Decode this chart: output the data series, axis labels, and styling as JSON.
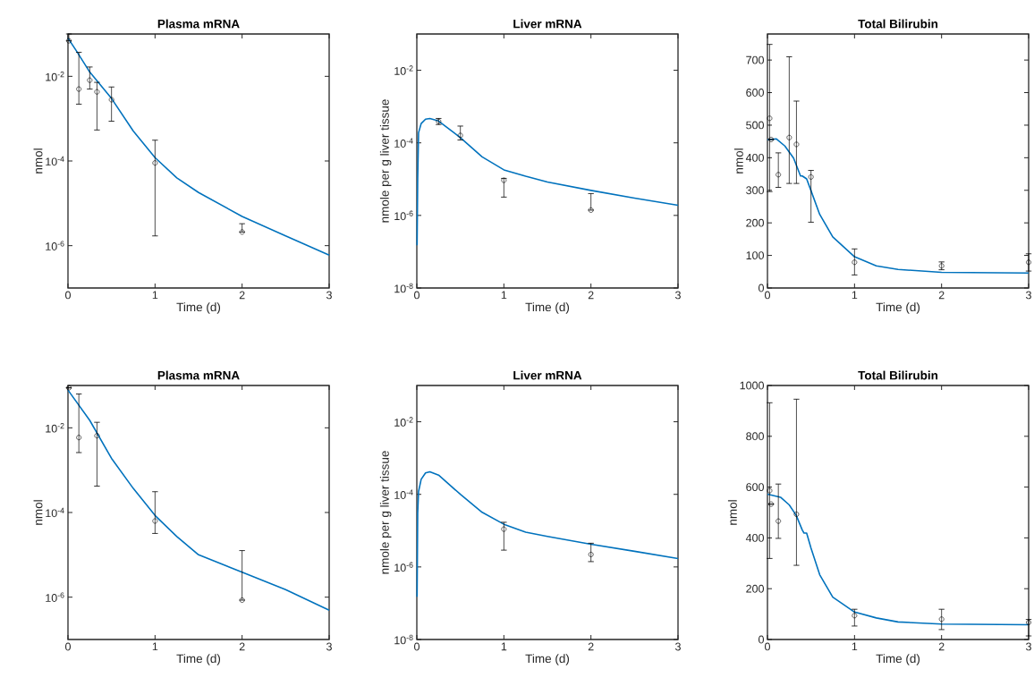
{
  "chart_data": [
    {
      "type": "line",
      "title": "Plasma mRNA",
      "xlabel": "Time (d)",
      "ylabel": "nmol",
      "xlim": [
        0,
        3
      ],
      "xticks": [
        0,
        1,
        2,
        3
      ],
      "ylim": [
        1e-07,
        0.1
      ],
      "log": "y",
      "yticks": [
        {
          "value": 1e-06,
          "label": "10$^{-6}$"
        },
        {
          "value": 0.0001,
          "label": "10$^{-4}$"
        },
        {
          "value": 0.01,
          "label": "10$^{-2}$"
        }
      ],
      "series": [
        {
          "color": "#0072bd",
          "x": [
            0,
            0.1,
            0.25,
            0.5,
            0.75,
            1,
            1.25,
            1.5,
            2,
            2.5,
            3
          ],
          "values": [
            0.08,
            0.039,
            0.0126,
            0.003,
            0.00051,
            0.00012,
            4e-05,
            1.8e-05,
            4.9e-06,
            1.7e-06,
            6e-07
          ]
        },
        {
          "type": "scatter",
          "color": "#000000",
          "marker": "circle",
          "x": [
            0.01,
            0.125,
            0.25,
            0.333,
            0.5,
            1,
            2
          ],
          "values": [
            0.069,
            0.005,
            0.0081,
            0.0043,
            0.0028,
            9e-05,
            2.1e-06
          ],
          "errors": [
            [
              0.069,
              0.1
            ],
            [
              0.0022,
              0.037
            ],
            [
              0.005,
              0.0166
            ],
            [
              0.00054,
              0.0072
            ],
            [
              0.00087,
              0.0056
            ],
            [
              1.7e-06,
              0.00031
            ],
            [
              2.1e-06,
              3.3e-06
            ]
          ]
        }
      ]
    },
    {
      "type": "line",
      "title": "Liver mRNA",
      "xlabel": "Time (d)",
      "ylabel": "nmole per g liver tissue",
      "xlim": [
        0,
        3
      ],
      "xticks": [
        0,
        1,
        2,
        3
      ],
      "ylim": [
        1e-08,
        0.1
      ],
      "log": "y",
      "yticks": [
        {
          "value": 1e-08,
          "label": "10$^{-8}$"
        },
        {
          "value": 1e-06,
          "label": "10$^{-6}$"
        },
        {
          "value": 0.0001,
          "label": "10$^{-4}$"
        },
        {
          "value": 0.01,
          "label": "10$^{-2}$"
        }
      ],
      "series": [
        {
          "color": "#0072bd",
          "x": [
            0.003,
            0.01,
            0.02,
            0.05,
            0.1,
            0.15,
            0.25,
            0.5,
            0.75,
            1,
            1.25,
            1.5,
            2,
            2.5,
            3
          ],
          "values": [
            1.5e-07,
            1e-05,
            0.00019,
            0.00034,
            0.00045,
            0.00047,
            0.0004,
            0.00014,
            4.1e-05,
            1.8e-05,
            1.2e-05,
            8.3e-06,
            4.9e-06,
            3e-06,
            1.9e-06
          ]
        },
        {
          "type": "scatter",
          "color": "#000000",
          "marker": "circle",
          "x": [
            0.25,
            0.5,
            1,
            2
          ],
          "values": [
            0.00039,
            0.00016,
            9.3e-06,
            1.4e-06
          ],
          "errors": [
            [
              0.00032,
              0.00047
            ],
            [
              0.00012,
              0.00029
            ],
            [
              3.2e-06,
              1.05e-05
            ],
            [
              1.4e-06,
              4e-06
            ]
          ]
        }
      ]
    },
    {
      "type": "line",
      "title": "Total Bilirubin",
      "xlabel": "Time (d)",
      "ylabel": "nmol",
      "xlim": [
        0,
        3
      ],
      "xticks": [
        0,
        1,
        2,
        3
      ],
      "ylim": [
        0,
        780
      ],
      "yticks": [
        0,
        100,
        200,
        300,
        400,
        500,
        600,
        700
      ],
      "series": [
        {
          "color": "#0072bd",
          "x": [
            0,
            0.1,
            0.2,
            0.3,
            0.38,
            0.4,
            0.45,
            0.5,
            0.6,
            0.75,
            1,
            1.25,
            1.5,
            2,
            3
          ],
          "values": [
            455,
            458,
            436,
            399,
            344,
            344,
            335,
            299,
            226,
            157,
            96,
            68,
            57,
            48,
            46
          ]
        },
        {
          "type": "scatter",
          "color": "#000000",
          "marker": "circle",
          "x": [
            0.025,
            0.0417,
            0.125,
            0.25,
            0.333,
            0.5,
            1,
            2,
            3
          ],
          "values": [
            521,
            456,
            348,
            462,
            441,
            341,
            79,
            68,
            79
          ],
          "errors": [
            [
              296,
              748
            ],
            null,
            [
              309,
              415
            ],
            [
              321,
              710
            ],
            [
              321,
              574
            ],
            [
              202,
              361
            ],
            [
              40,
              120
            ],
            [
              56,
              80
            ],
            [
              52,
              105
            ]
          ]
        }
      ]
    },
    {
      "type": "line",
      "title": "Plasma mRNA",
      "xlabel": "Time (d)",
      "ylabel": "nmol",
      "xlim": [
        0,
        3
      ],
      "xticks": [
        0,
        1,
        2,
        3
      ],
      "ylim": [
        1e-07,
        0.1
      ],
      "log": "y",
      "yticks": [
        {
          "value": 1e-06,
          "label": "10$^{-6}$"
        },
        {
          "value": 0.0001,
          "label": "10$^{-4}$"
        },
        {
          "value": 0.01,
          "label": "10$^{-2}$"
        }
      ],
      "series": [
        {
          "color": "#0072bd",
          "x": [
            0,
            0.25,
            0.5,
            0.75,
            1,
            1.25,
            1.5,
            2,
            2.5,
            3
          ],
          "values": [
            0.078,
            0.015,
            0.0019,
            0.00037,
            8.5e-05,
            2.7e-05,
            1e-05,
            3.9e-06,
            1.5e-06,
            4.9e-07
          ]
        },
        {
          "type": "scatter",
          "color": "#000000",
          "marker": "circle",
          "x": [
            0.01,
            0.125,
            0.333,
            1,
            2
          ],
          "values": [
            0.088,
            0.0059,
            0.0065,
            6.3e-05,
            8.5e-07
          ],
          "errors": [
            null,
            [
              0.0026,
              0.063
            ],
            [
              0.00042,
              0.0135
            ],
            [
              3.2e-05,
              0.00031
            ],
            [
              8.5e-07,
              1.26e-05
            ]
          ]
        }
      ]
    },
    {
      "type": "line",
      "title": "Liver mRNA",
      "xlabel": "Time (d)",
      "ylabel": "nmole per g liver tissue",
      "xlim": [
        0,
        3
      ],
      "xticks": [
        0,
        1,
        2,
        3
      ],
      "ylim": [
        1e-08,
        0.1
      ],
      "log": "y",
      "yticks": [
        {
          "value": 1e-08,
          "label": "10$^{-8}$"
        },
        {
          "value": 1e-06,
          "label": "10$^{-6}$"
        },
        {
          "value": 0.0001,
          "label": "10$^{-4}$"
        },
        {
          "value": 0.01,
          "label": "10$^{-2}$"
        }
      ],
      "series": [
        {
          "color": "#0072bd",
          "x": [
            0.003,
            0.01,
            0.02,
            0.05,
            0.1,
            0.15,
            0.25,
            0.5,
            0.75,
            1,
            1.25,
            1.5,
            2,
            2.5,
            3
          ],
          "values": [
            1.5e-07,
            3e-05,
            0.00012,
            0.00026,
            0.00039,
            0.00042,
            0.00034,
            0.0001,
            3.2e-05,
            1.5e-05,
            9.1e-06,
            6.9e-06,
            4.2e-06,
            2.7e-06,
            1.7e-06
          ]
        },
        {
          "type": "scatter",
          "color": "#000000",
          "marker": "circle",
          "x": [
            1,
            2
          ],
          "values": [
            1.1e-05,
            2.2e-06
          ],
          "errors": [
            [
              2.9e-06,
              1.7e-05
            ],
            [
              1.4e-06,
              4.5e-06
            ]
          ]
        }
      ]
    },
    {
      "type": "line",
      "title": "Total Bilirubin",
      "xlabel": "Time (d)",
      "ylabel": "nmol",
      "xlim": [
        0,
        3
      ],
      "xticks": [
        0,
        1,
        2,
        3
      ],
      "ylim": [
        0,
        1000
      ],
      "yticks": [
        0,
        200,
        400,
        600,
        800,
        1000
      ],
      "series": [
        {
          "color": "#0072bd",
          "x": [
            0,
            0.15,
            0.25,
            0.33,
            0.4,
            0.42,
            0.45,
            0.5,
            0.6,
            0.75,
            1,
            1.25,
            1.5,
            2,
            3
          ],
          "values": [
            572,
            560,
            530,
            489,
            431,
            419,
            419,
            360,
            255,
            167,
            108,
            85,
            69,
            61,
            58
          ]
        },
        {
          "type": "scatter",
          "color": "#000000",
          "marker": "circle",
          "x": [
            0.025,
            0.0417,
            0.125,
            0.333,
            1,
            2,
            3
          ],
          "values": [
            586,
            533,
            466,
            493,
            94,
            80,
            67
          ],
          "errors": [
            [
              319,
              932
            ],
            null,
            [
              398,
              612
            ],
            [
              292,
              946
            ],
            [
              53,
              119
            ],
            [
              39,
              119
            ],
            [
              14,
              79
            ]
          ]
        }
      ]
    }
  ]
}
